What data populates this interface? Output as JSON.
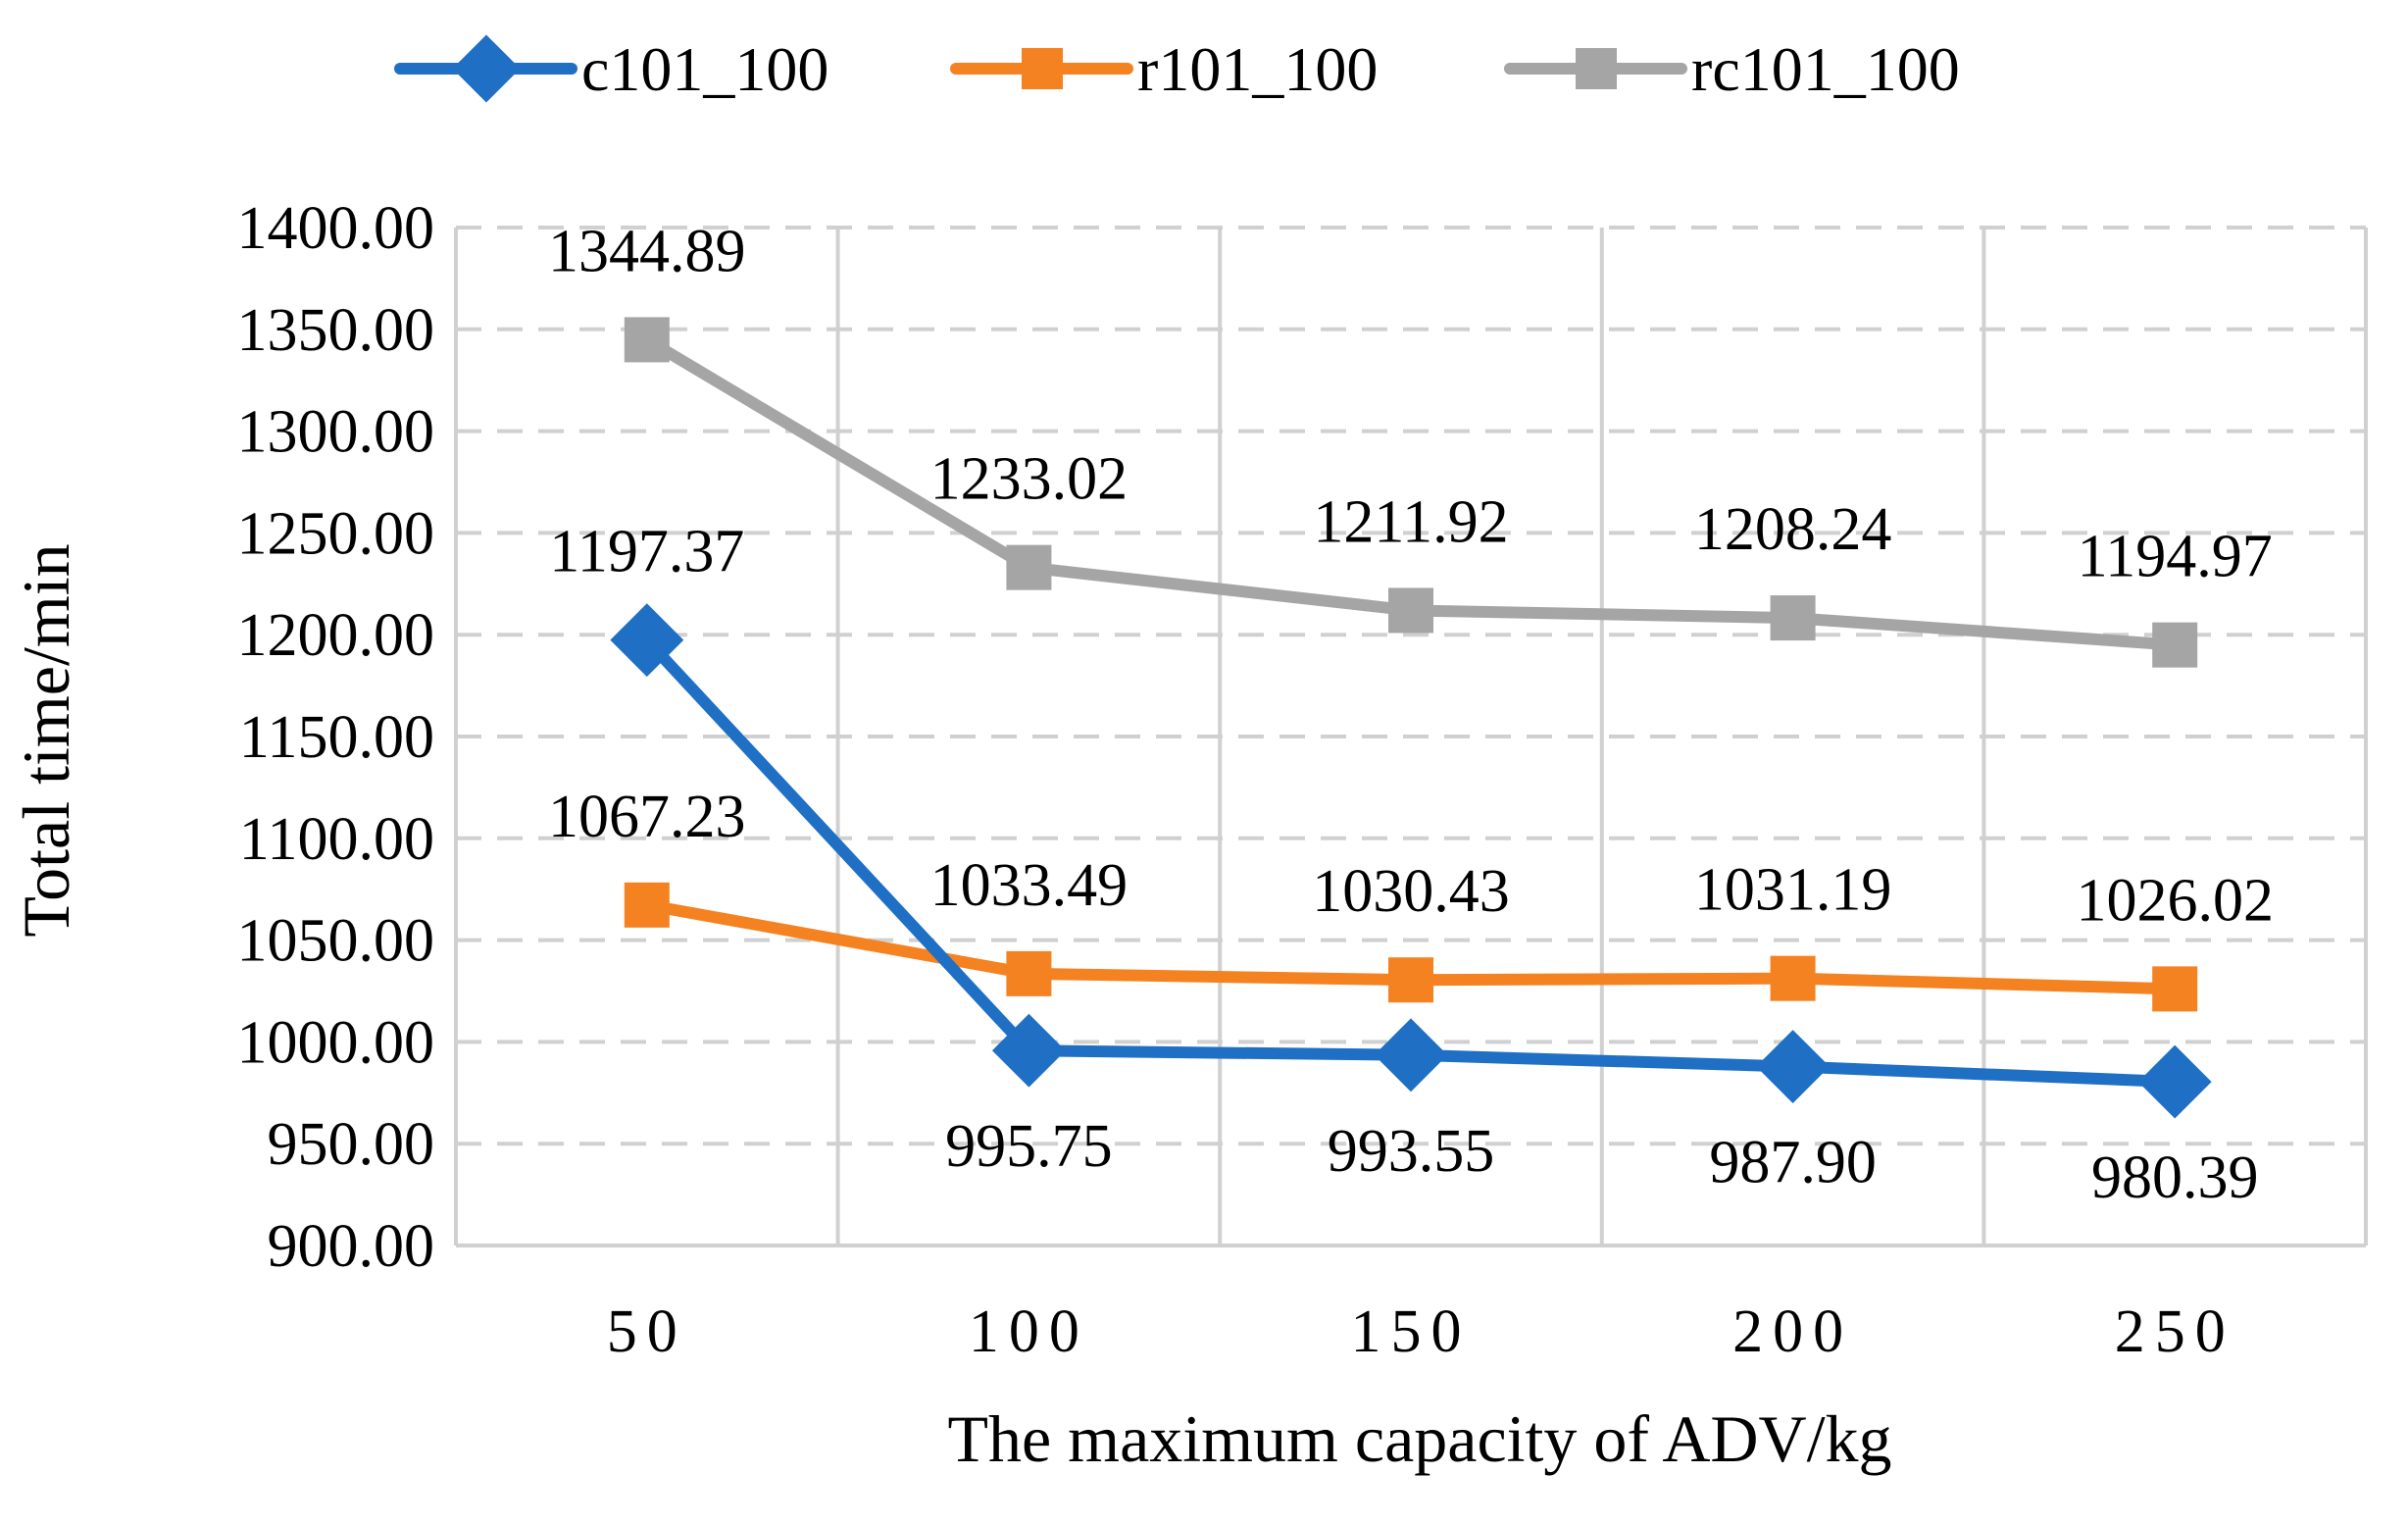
{
  "chart_data": {
    "type": "line",
    "title": "",
    "xlabel": "The maximum capacity of ADV/kg",
    "ylabel": "Total time/min",
    "categories": [
      "50",
      "100",
      "150",
      "200",
      "250"
    ],
    "ylim": [
      900,
      1400
    ],
    "yticks": [
      "900.00",
      "950.00",
      "1000.00",
      "1050.00",
      "1100.00",
      "1150.00",
      "1200.00",
      "1250.00",
      "1300.00",
      "1350.00",
      "1400.00"
    ],
    "grid": true,
    "legend_position": "top",
    "series": [
      {
        "name": "c101_100",
        "color": "#1f6fc5",
        "marker": "diamond",
        "values": [
          1197.37,
          995.75,
          993.55,
          987.9,
          980.39
        ],
        "labels": [
          "1197.37",
          "995.75",
          "993.55",
          "987.90",
          "980.39"
        ],
        "label_position": [
          "above",
          "below",
          "below",
          "below",
          "below"
        ]
      },
      {
        "name": "r101_100",
        "color": "#f58220",
        "marker": "square",
        "values": [
          1067.23,
          1033.49,
          1030.43,
          1031.19,
          1026.02
        ],
        "labels": [
          "1067.23",
          "1033.49",
          "1030.43",
          "1031.19",
          "1026.02"
        ],
        "label_position": [
          "above",
          "above",
          "above",
          "above",
          "above"
        ]
      },
      {
        "name": "rc101_100",
        "color": "#a5a5a5",
        "marker": "square",
        "values": [
          1344.89,
          1233.02,
          1211.92,
          1208.24,
          1194.97
        ],
        "labels": [
          "1344.89",
          "1233.02",
          "1211.92",
          "1208.24",
          "1194.97"
        ],
        "label_position": [
          "above",
          "above",
          "above",
          "above",
          "above"
        ]
      }
    ]
  }
}
